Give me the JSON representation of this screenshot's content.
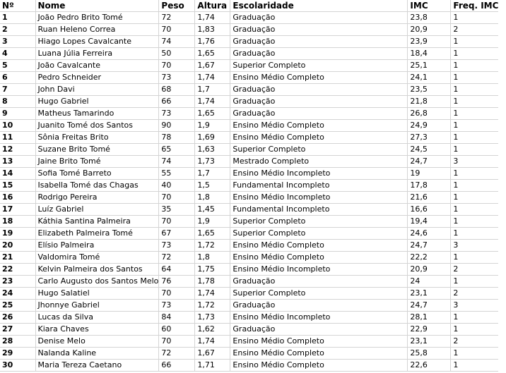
{
  "headers": [
    "Nº",
    "Nome",
    "Peso",
    "Altura",
    "Escolaridade",
    "IMC",
    "Freq. IMC"
  ],
  "rows": [
    [
      "1",
      "João Pedro Brito Tomé",
      "72",
      "1,74",
      "Graduação",
      "23,8",
      "1"
    ],
    [
      "2",
      "Ruan Heleno Correa",
      "70",
      "1,83",
      "Graduação",
      "20,9",
      "2"
    ],
    [
      "3",
      "Hiago Lopes Cavalcante",
      "74",
      "1,76",
      "Graduação",
      "23,9",
      "1"
    ],
    [
      "4",
      "Luana Júlia Ferreira",
      "50",
      "1,65",
      "Graduação",
      "18,4",
      "1"
    ],
    [
      "5",
      "João Cavalcante",
      "70",
      "1,67",
      "Superior Completo",
      "25,1",
      "1"
    ],
    [
      "6",
      "Pedro Schneider",
      "73",
      "1,74",
      "Ensino Médio Completo",
      "24,1",
      "1"
    ],
    [
      "7",
      "John Davi",
      "68",
      "1,7",
      "Graduação",
      "23,5",
      "1"
    ],
    [
      "8",
      "Hugo Gabriel",
      "66",
      "1,74",
      "Graduação",
      "21,8",
      "1"
    ],
    [
      "9",
      "Matheus Tamarindo",
      "73",
      "1,65",
      "Graduação",
      "26,8",
      "1"
    ],
    [
      "10",
      "Juanito Tomé dos Santos",
      "90",
      "1,9",
      "Ensino Médio Completo",
      "24,9",
      "1"
    ],
    [
      "11",
      "Sônia Freitas Brito",
      "78",
      "1,69",
      "Ensino Médio Completo",
      "27,3",
      "1"
    ],
    [
      "12",
      "Suzane Brito Tomé",
      "65",
      "1,63",
      "Superior Completo",
      "24,5",
      "1"
    ],
    [
      "13",
      "Jaine Brito Tomé",
      "74",
      "1,73",
      "Mestrado Completo",
      "24,7",
      "3"
    ],
    [
      "14",
      "Sofia Tomé Barreto",
      "55",
      "1,7",
      "Ensino Médio Incompleto",
      "19",
      "1"
    ],
    [
      "15",
      "Isabella Tomé das Chagas",
      "40",
      "1,5",
      "Fundamental Incompleto",
      "17,8",
      "1"
    ],
    [
      "16",
      "Rodrigo Pereira",
      "70",
      "1,8",
      "Ensino Médio Incompleto",
      "21,6",
      "1"
    ],
    [
      "17",
      "Luíz Gabriel",
      "35",
      "1,45",
      "Fundamental Incompleto",
      "16,6",
      "1"
    ],
    [
      "18",
      "Káthia Santina Palmeira",
      "70",
      "1,9",
      "Superior Completo",
      "19,4",
      "1"
    ],
    [
      "19",
      "Elizabeth Palmeira Tomé",
      "67",
      "1,65",
      "Superior Completo",
      "24,6",
      "1"
    ],
    [
      "20",
      "Elísio Palmeira",
      "73",
      "1,72",
      "Ensino Médio Completo",
      "24,7",
      "3"
    ],
    [
      "21",
      "Valdomira Tomé",
      "72",
      "1,8",
      "Ensino Médio Completo",
      "22,2",
      "1"
    ],
    [
      "22",
      "Kelvin Palmeira dos Santos",
      "64",
      "1,75",
      "Ensino Médio Incompleto",
      "20,9",
      "2"
    ],
    [
      "23",
      "Carlo Augusto dos Santos Melo",
      "76",
      "1,78",
      "Graduação",
      "24",
      "1"
    ],
    [
      "24",
      "Hugo Salatiel",
      "70",
      "1,74",
      "Superior Completo",
      "23,1",
      "2"
    ],
    [
      "25",
      "Jhonnye Gabriel",
      "73",
      "1,72",
      "Graduação",
      "24,7",
      "3"
    ],
    [
      "26",
      "Lucas da Silva",
      "84",
      "1,73",
      "Ensino Médio Incompleto",
      "28,1",
      "1"
    ],
    [
      "27",
      "Kiara Chaves",
      "60",
      "1,62",
      "Graduação",
      "22,9",
      "1"
    ],
    [
      "28",
      "Denise Melo",
      "70",
      "1,74",
      "Ensino Médio Completo",
      "23,1",
      "2"
    ],
    [
      "29",
      "Nalanda Kaline",
      "72",
      "1,67",
      "Ensino Médio Completo",
      "25,8",
      "1"
    ],
    [
      "30",
      "Maria Tereza Caetano",
      "66",
      "1,71",
      "Ensino Médio Completo",
      "22,6",
      "1"
    ]
  ]
}
